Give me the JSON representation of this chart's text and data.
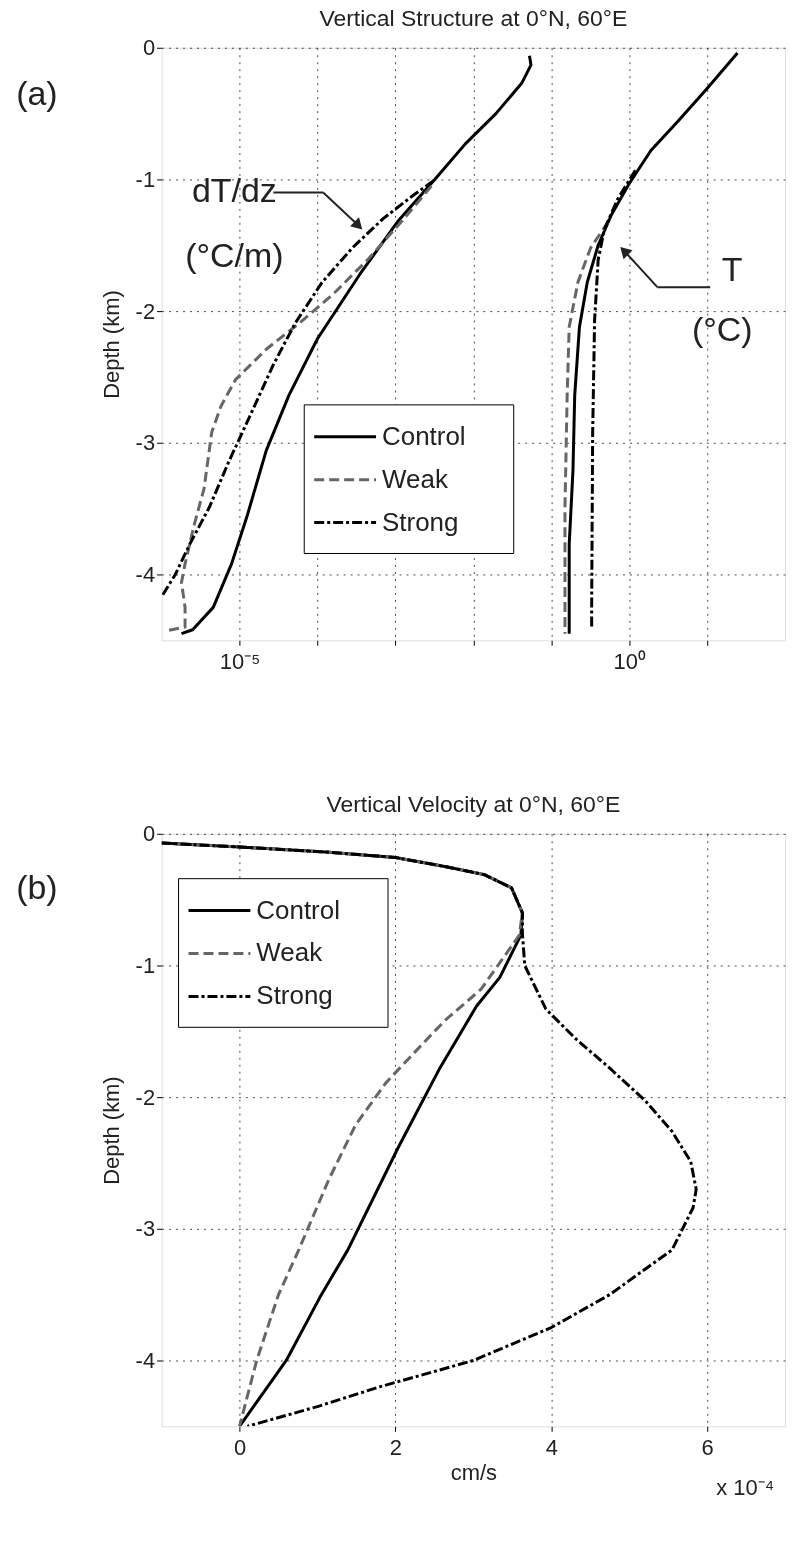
{
  "chart_data": [
    {
      "type": "line",
      "title": "Vertical Structure at 0°N, 60°E",
      "ylabel": "Depth (km)",
      "log": "x",
      "grid": true,
      "legend": "bottom",
      "xlim": [
        1e-06,
        100
      ],
      "ylim": [
        -4.5,
        0
      ],
      "xticks": [
        {
          "value": 1e-05,
          "label": "10⁻⁵"
        },
        {
          "value": 0.0001,
          "label": null
        },
        {
          "value": 0.001,
          "label": null
        },
        {
          "value": 0.01,
          "label": null
        },
        {
          "value": 0.1,
          "label": null
        },
        {
          "value": 1,
          "label": "10⁰"
        },
        {
          "value": 10,
          "label": null
        }
      ],
      "yticks": [
        -4,
        -3,
        -2,
        -1,
        0
      ],
      "annotations": [
        "(a)",
        "dT/dz",
        "(°C/m)",
        "T",
        "(°C)"
      ],
      "series": [
        {
          "name": "Control",
          "color": "#000000",
          "line_style": "solid",
          "x": [
            0.0525,
            0.055,
            0.0417,
            0.0195,
            0.0079,
            0.0032,
            0.00107,
            0.00035,
            0.0001,
            4.3e-05,
            2.2e-05,
            1.26e-05,
            7.9e-06,
            4.6e-06,
            2.5e-06,
            1.8e-06
          ],
          "values": [
            -0.06,
            -0.13,
            -0.27,
            -0.5,
            -0.73,
            -1.0,
            -1.32,
            -1.72,
            -2.21,
            -2.64,
            -3.06,
            -3.55,
            -3.92,
            -4.25,
            -4.42,
            -4.45
          ]
        },
        {
          "name": "Weak",
          "color": "#666666",
          "line_style": "dashed",
          "x": [
            0.0029,
            0.0012,
            0.00044,
            0.00016,
            5.9e-05,
            2.2e-05,
            8.9e-06,
            5.8e-06,
            4.4e-06,
            3.5e-06,
            2.6e-06,
            2e-06,
            1.8e-06,
            2e-06,
            2e-06,
            1.1e-06
          ],
          "values": [
            -1.05,
            -1.32,
            -1.61,
            -1.87,
            -2.09,
            -2.29,
            -2.52,
            -2.72,
            -2.92,
            -3.35,
            -3.63,
            -3.92,
            -4.06,
            -4.25,
            -4.4,
            -4.43
          ]
        },
        {
          "name": "Strong",
          "color": "#000000",
          "line_style": "dashdot",
          "x": [
            0.0031,
            0.0017,
            0.00069,
            0.00028,
            0.000115,
            5.2e-05,
            2.7e-05,
            1.4e-05,
            7.2e-06,
            4.1e-06,
            2.3e-06,
            1.5e-06,
            1e-06
          ],
          "values": [
            -1.01,
            -1.12,
            -1.3,
            -1.52,
            -1.78,
            -2.09,
            -2.41,
            -2.78,
            -3.15,
            -3.49,
            -3.77,
            -4.0,
            -4.17
          ]
        },
        {
          "color": "#000000",
          "line_style": "solid",
          "x": [
            24.5,
            10,
            4.2,
            1.9,
            0.98,
            0.59,
            0.4,
            0.29,
            0.23,
            0.2,
            0.19,
            0.17,
            0.17,
            0.17
          ],
          "values": [
            -0.04,
            -0.31,
            -0.56,
            -0.78,
            -1.04,
            -1.27,
            -1.5,
            -1.78,
            -2.12,
            -2.64,
            -3.21,
            -3.77,
            -4.25,
            -4.45
          ]
        },
        {
          "color": "#666666",
          "line_style": "dashed",
          "x": [
            0.54,
            0.32,
            0.22,
            0.17,
            0.16,
            0.15,
            0.15,
            0.15
          ],
          "values": [
            -1.32,
            -1.52,
            -1.78,
            -2.12,
            -2.64,
            -3.49,
            -4.25,
            -4.45
          ]
        },
        {
          "color": "#000000",
          "line_style": "dashdot",
          "x": [
            1.2,
            0.71,
            0.48,
            0.4,
            0.36,
            0.34,
            0.33,
            0.33
          ],
          "values": [
            -0.93,
            -1.15,
            -1.38,
            -1.61,
            -2.07,
            -2.92,
            -4.25,
            -4.4
          ]
        }
      ]
    },
    {
      "type": "line",
      "title": "Vertical Velocity at 0°N, 60°E",
      "ylabel": "Depth (km)",
      "xlabel": "cm/s",
      "grid": true,
      "legend": "top left",
      "xlim": [
        -1,
        7
      ],
      "ylim": [
        -4.5,
        0
      ],
      "xticks": [
        0,
        2,
        4,
        6
      ],
      "yticks": [
        -4,
        -3,
        -2,
        -1,
        0
      ],
      "annotations": [
        "(b)",
        "x 10⁻⁴"
      ],
      "series": [
        {
          "name": "Control",
          "color": "#000000",
          "line_style": "solid",
          "x": [
            -1,
            0,
            1.15,
            2.0,
            2.65,
            3.14,
            3.49,
            3.63,
            3.61,
            3.34,
            3.04,
            2.57,
            2.03,
            1.39,
            1.05,
            0.6,
            0.3,
            0.0
          ],
          "values": [
            -0.07,
            -0.1,
            -0.14,
            -0.18,
            -0.25,
            -0.31,
            -0.41,
            -0.6,
            -0.77,
            -1.09,
            -1.31,
            -1.78,
            -2.39,
            -3.16,
            -3.5,
            -4.0,
            -4.25,
            -4.5
          ]
        },
        {
          "name": "Weak",
          "color": "#666666",
          "line_style": "dashed",
          "x": [
            -1,
            0,
            1.15,
            2.0,
            2.65,
            3.14,
            3.49,
            3.63,
            3.59,
            3.1,
            2.65,
            2.47,
            1.88,
            1.49,
            1.15,
            0.76,
            0.5,
            0.22,
            0.0
          ],
          "values": [
            -0.07,
            -0.1,
            -0.14,
            -0.18,
            -0.25,
            -0.31,
            -0.41,
            -0.6,
            -0.77,
            -1.18,
            -1.41,
            -1.52,
            -1.89,
            -2.21,
            -2.62,
            -3.16,
            -3.5,
            -4.0,
            -4.5
          ]
        },
        {
          "name": "Strong",
          "color": "#000000",
          "line_style": "dashdot",
          "x": [
            -1,
            0,
            1.15,
            2.0,
            2.65,
            3.14,
            3.49,
            3.63,
            3.63,
            3.66,
            3.93,
            4.32,
            4.77,
            5.21,
            5.55,
            5.79,
            5.86,
            5.82,
            5.55,
            4.75,
            4.0,
            3.0,
            1.8,
            1.0,
            0.1
          ],
          "values": [
            -0.07,
            -0.1,
            -0.14,
            -0.18,
            -0.25,
            -0.31,
            -0.41,
            -0.6,
            -0.76,
            -1.0,
            -1.33,
            -1.56,
            -1.79,
            -2.03,
            -2.26,
            -2.49,
            -2.7,
            -2.84,
            -3.16,
            -3.5,
            -3.75,
            -4.0,
            -4.2,
            -4.35,
            -4.5
          ]
        }
      ]
    }
  ]
}
